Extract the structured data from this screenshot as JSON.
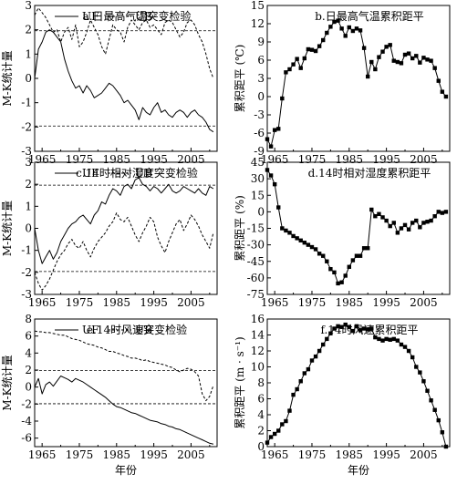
{
  "chart_data": [
    {
      "panel": "a",
      "type": "line",
      "title": "a.日最高气温突变检验",
      "ylabel": "M-K统计量",
      "xlabel": "",
      "xlim": [
        1963,
        2012
      ],
      "ylim": [
        -3,
        3
      ],
      "xticks": [
        1965,
        1975,
        1985,
        1995,
        2005
      ],
      "yticks": [
        -3,
        -2,
        -1,
        0,
        1,
        2,
        3
      ],
      "reference_lines": [
        1.96,
        -1.96
      ],
      "legend": [
        "UF",
        "UB"
      ],
      "x": [
        1963,
        1964,
        1965,
        1966,
        1967,
        1968,
        1969,
        1970,
        1971,
        1972,
        1973,
        1974,
        1975,
        1976,
        1977,
        1978,
        1979,
        1980,
        1981,
        1982,
        1983,
        1984,
        1985,
        1986,
        1987,
        1988,
        1989,
        1990,
        1991,
        1992,
        1993,
        1994,
        1995,
        1996,
        1997,
        1998,
        1999,
        2000,
        2001,
        2002,
        2003,
        2004,
        2005,
        2006,
        2007,
        2008,
        2009,
        2010,
        2011
      ],
      "series": [
        {
          "name": "UF",
          "style": "solid",
          "values": [
            0.0,
            1.2,
            1.5,
            1.9,
            2.0,
            1.9,
            1.7,
            1.5,
            0.8,
            0.3,
            -0.1,
            -0.4,
            -0.3,
            -0.6,
            -0.3,
            -0.5,
            -0.8,
            -0.7,
            -0.6,
            -0.4,
            -0.2,
            -0.3,
            -0.5,
            -0.7,
            -1.0,
            -0.9,
            -1.1,
            -1.3,
            -1.7,
            -1.2,
            -1.4,
            -1.5,
            -1.2,
            -1.0,
            -1.4,
            -1.3,
            -1.5,
            -1.6,
            -1.4,
            -1.3,
            -1.4,
            -1.6,
            -1.4,
            -1.3,
            -1.5,
            -1.6,
            -1.8,
            -2.1,
            -2.2
          ]
        },
        {
          "name": "UB",
          "style": "dashed",
          "values": [
            2.6,
            2.9,
            2.7,
            2.5,
            2.2,
            1.9,
            2.0,
            1.5,
            1.9,
            2.1,
            1.6,
            2.2,
            1.3,
            1.5,
            1.9,
            2.4,
            2.1,
            1.8,
            1.3,
            1.0,
            1.6,
            2.2,
            2.0,
            1.9,
            1.5,
            2.1,
            2.4,
            2.2,
            2.0,
            2.3,
            2.4,
            2.1,
            2.2,
            2.0,
            1.8,
            2.3,
            2.4,
            2.3,
            2.0,
            1.7,
            1.9,
            2.3,
            2.4,
            2.2,
            1.8,
            1.5,
            1.0,
            0.4,
            0.0
          ]
        }
      ]
    },
    {
      "panel": "b",
      "type": "line",
      "title": "b.日最高气温累积距平",
      "ylabel": "累积距平 (℃)",
      "xlabel": "",
      "xlim": [
        1963,
        2012
      ],
      "ylim": [
        -9,
        15
      ],
      "xticks": [
        1965,
        1975,
        1985,
        1995,
        2005
      ],
      "yticks": [
        -9,
        -6,
        -3,
        0,
        3,
        6,
        9,
        12,
        15
      ],
      "marker": "square",
      "x": [
        1963,
        1964,
        1965,
        1966,
        1967,
        1968,
        1969,
        1970,
        1971,
        1972,
        1973,
        1974,
        1975,
        1976,
        1977,
        1978,
        1979,
        1980,
        1981,
        1982,
        1983,
        1984,
        1985,
        1986,
        1987,
        1988,
        1989,
        1990,
        1991,
        1992,
        1993,
        1994,
        1995,
        1996,
        1997,
        1998,
        1999,
        2000,
        2001,
        2002,
        2003,
        2004,
        2005,
        2006,
        2007,
        2008,
        2009,
        2010,
        2011
      ],
      "series": [
        {
          "name": "",
          "values": [
            -7.0,
            -8.2,
            -5.5,
            -5.3,
            -0.3,
            4.0,
            4.5,
            5.3,
            6.2,
            4.7,
            6.3,
            7.8,
            7.7,
            7.5,
            8.3,
            9.3,
            10.5,
            11.5,
            12.3,
            12.5,
            11.2,
            10.0,
            11.4,
            10.8,
            11.2,
            10.9,
            8.0,
            3.3,
            5.7,
            4.5,
            6.5,
            7.4,
            8.2,
            8.5,
            5.9,
            5.7,
            5.5,
            6.9,
            7.1,
            6.3,
            6.7,
            5.6,
            6.4,
            6.1,
            5.9,
            4.7,
            2.6,
            0.8,
            0.0
          ]
        }
      ]
    },
    {
      "panel": "c",
      "type": "line",
      "title": "c.14时相对湿度突变检验",
      "ylabel": "M-K统计量",
      "xlabel": "",
      "xlim": [
        1963,
        2012
      ],
      "ylim": [
        -3,
        3
      ],
      "xticks": [
        1965,
        1975,
        1985,
        1995,
        2005
      ],
      "yticks": [
        -3,
        -2,
        -1,
        0,
        1,
        2,
        3
      ],
      "reference_lines": [
        1.96,
        -1.96
      ],
      "legend": [
        "UF",
        "UB"
      ],
      "x": [
        1963,
        1964,
        1965,
        1966,
        1967,
        1968,
        1969,
        1970,
        1971,
        1972,
        1973,
        1974,
        1975,
        1976,
        1977,
        1978,
        1979,
        1980,
        1981,
        1982,
        1983,
        1984,
        1985,
        1986,
        1987,
        1988,
        1989,
        1990,
        1991,
        1992,
        1993,
        1994,
        1995,
        1996,
        1997,
        1998,
        1999,
        2000,
        2001,
        2002,
        2003,
        2004,
        2005,
        2006,
        2007,
        2008,
        2009,
        2010,
        2011
      ],
      "series": [
        {
          "name": "UF",
          "style": "solid",
          "values": [
            0.0,
            -1.0,
            -1.6,
            -1.3,
            -1.0,
            -1.4,
            -1.1,
            -0.6,
            -0.3,
            0.0,
            0.2,
            0.3,
            0.5,
            0.6,
            0.4,
            0.2,
            0.6,
            0.8,
            1.2,
            1.1,
            1.5,
            1.8,
            1.7,
            1.5,
            1.9,
            2.0,
            1.8,
            2.2,
            2.3,
            2.0,
            1.9,
            1.7,
            1.9,
            1.8,
            1.6,
            1.8,
            2.0,
            1.7,
            1.6,
            1.7,
            1.9,
            1.8,
            1.7,
            1.6,
            1.8,
            1.6,
            1.5,
            1.9,
            1.8
          ]
        },
        {
          "name": "UB",
          "style": "dashed",
          "values": [
            -2.0,
            -2.5,
            -2.8,
            -2.6,
            -2.3,
            -1.9,
            -1.5,
            -1.2,
            -1.0,
            -0.7,
            -0.5,
            -0.8,
            -0.9,
            -0.6,
            -1.0,
            -1.3,
            -0.9,
            -0.6,
            -0.4,
            -0.2,
            0.1,
            0.3,
            0.7,
            0.4,
            0.3,
            0.5,
            0.1,
            -0.3,
            -0.6,
            -0.2,
            0.1,
            0.5,
            0.3,
            -0.4,
            -0.8,
            -1.1,
            -0.6,
            -0.2,
            0.2,
            0.4,
            -0.1,
            0.2,
            0.6,
            0.4,
            0.1,
            -0.3,
            -0.6,
            -0.9,
            -0.2
          ]
        }
      ]
    },
    {
      "panel": "d",
      "type": "line",
      "title": "d.14时相对湿度累积距平",
      "ylabel": "累积距平 (%)",
      "xlabel": "",
      "xlim": [
        1963,
        2012
      ],
      "ylim": [
        -75,
        45
      ],
      "xticks": [
        1965,
        1975,
        1985,
        1995,
        2005
      ],
      "yticks": [
        -75,
        -60,
        -45,
        -30,
        -15,
        0,
        15,
        30,
        45
      ],
      "marker": "square",
      "x": [
        1963,
        1964,
        1965,
        1966,
        1967,
        1968,
        1969,
        1970,
        1971,
        1972,
        1973,
        1974,
        1975,
        1976,
        1977,
        1978,
        1979,
        1980,
        1981,
        1982,
        1983,
        1984,
        1985,
        1986,
        1987,
        1988,
        1989,
        1990,
        1991,
        1992,
        1993,
        1994,
        1995,
        1996,
        1997,
        1998,
        1999,
        2000,
        2001,
        2002,
        2003,
        2004,
        2005,
        2006,
        2007,
        2008,
        2009,
        2010,
        2011
      ],
      "series": [
        {
          "name": "",
          "values": [
            38,
            33,
            25,
            4,
            -15,
            -17,
            -19,
            -22,
            -24,
            -26,
            -28,
            -30,
            -32,
            -34,
            -38,
            -40,
            -45,
            -52,
            -55,
            -65,
            -64,
            -58,
            -50,
            -44,
            -40,
            -40,
            -33,
            -33,
            2,
            -4,
            -2,
            -5,
            -8,
            -13,
            -10,
            -19,
            -15,
            -12,
            -16,
            -10,
            -8,
            -14,
            -10,
            -9,
            -8,
            -4,
            0,
            -1,
            0
          ]
        }
      ]
    },
    {
      "panel": "e",
      "type": "line",
      "title": "e.14时风速突变检验",
      "ylabel": "M-K统计量",
      "xlabel": "年份",
      "xlim": [
        1963,
        2012
      ],
      "ylim": [
        -7,
        8
      ],
      "xticks": [
        1965,
        1975,
        1985,
        1995,
        2005
      ],
      "yticks": [
        -6,
        -4,
        -2,
        0,
        2,
        4,
        6,
        8
      ],
      "reference_lines": [
        1.96,
        -1.96
      ],
      "legend": [
        "UF",
        "UB"
      ],
      "x": [
        1963,
        1964,
        1965,
        1966,
        1967,
        1968,
        1969,
        1970,
        1971,
        1972,
        1973,
        1974,
        1975,
        1976,
        1977,
        1978,
        1979,
        1980,
        1981,
        1982,
        1983,
        1984,
        1985,
        1986,
        1987,
        1988,
        1989,
        1990,
        1991,
        1992,
        1993,
        1994,
        1995,
        1996,
        1997,
        1998,
        1999,
        2000,
        2001,
        2002,
        2003,
        2004,
        2005,
        2006,
        2007,
        2008,
        2009,
        2010,
        2011
      ],
      "series": [
        {
          "name": "UF",
          "style": "solid",
          "values": [
            0.0,
            1.0,
            -0.8,
            0.3,
            0.6,
            0.1,
            0.7,
            1.3,
            1.1,
            0.9,
            0.6,
            1.0,
            0.8,
            0.6,
            0.3,
            0.0,
            -0.3,
            -0.6,
            -0.9,
            -1.2,
            -1.6,
            -2.0,
            -2.3,
            -2.4,
            -2.6,
            -2.8,
            -3.0,
            -3.1,
            -3.3,
            -3.5,
            -3.7,
            -3.9,
            -4.0,
            -4.1,
            -4.3,
            -4.4,
            -4.6,
            -4.7,
            -4.9,
            -5.0,
            -5.2,
            -5.4,
            -5.6,
            -5.8,
            -6.0,
            -6.2,
            -6.4,
            -6.6,
            -6.7
          ]
        },
        {
          "name": "UB",
          "style": "dashed",
          "values": [
            6.6,
            6.5,
            6.5,
            6.4,
            6.4,
            6.3,
            6.2,
            6.1,
            6.1,
            5.9,
            5.7,
            5.6,
            5.5,
            5.3,
            5.1,
            5.0,
            4.9,
            4.7,
            4.6,
            4.4,
            4.2,
            4.2,
            4.0,
            3.9,
            3.7,
            3.6,
            3.4,
            3.4,
            3.3,
            3.1,
            3.2,
            3.0,
            2.9,
            2.8,
            2.7,
            2.6,
            2.4,
            2.3,
            2.0,
            1.8,
            2.0,
            2.2,
            2.1,
            1.8,
            1.3,
            -0.8,
            -1.6,
            -1.1,
            0.2
          ]
        }
      ]
    },
    {
      "panel": "f",
      "type": "line",
      "title": "f.14时风速累积距平",
      "ylabel": "累积距平 (m · s⁻¹)",
      "xlabel": "年份",
      "xlim": [
        1963,
        2012
      ],
      "ylim": [
        0,
        16
      ],
      "xticks": [
        1965,
        1975,
        1985,
        1995,
        2005
      ],
      "yticks": [
        0,
        2,
        4,
        6,
        8,
        10,
        12,
        14,
        16
      ],
      "marker": "square",
      "x": [
        1963,
        1964,
        1965,
        1966,
        1967,
        1968,
        1969,
        1970,
        1971,
        1972,
        1973,
        1974,
        1975,
        1976,
        1977,
        1978,
        1979,
        1980,
        1981,
        1982,
        1983,
        1984,
        1985,
        1986,
        1987,
        1988,
        1989,
        1990,
        1991,
        1992,
        1993,
        1994,
        1995,
        1996,
        1997,
        1998,
        1999,
        2000,
        2001,
        2002,
        2003,
        2004,
        2005,
        2006,
        2007,
        2008,
        2009,
        2010,
        2011
      ],
      "series": [
        {
          "name": "",
          "values": [
            0.5,
            1.2,
            1.6,
            2.0,
            2.8,
            3.2,
            4.5,
            6.5,
            7.2,
            8.2,
            9.2,
            9.7,
            10.8,
            11.3,
            12.0,
            12.8,
            13.5,
            14.2,
            14.8,
            15.1,
            15.0,
            15.3,
            15.0,
            14.5,
            15.1,
            14.6,
            14.8,
            14.7,
            14.8,
            13.7,
            13.5,
            13.3,
            13.5,
            13.4,
            13.5,
            13.3,
            12.8,
            12.5,
            12.0,
            11.2,
            10.0,
            9.3,
            8.2,
            7.0,
            5.8,
            4.6,
            3.3,
            1.8,
            0.0
          ]
        }
      ]
    }
  ]
}
